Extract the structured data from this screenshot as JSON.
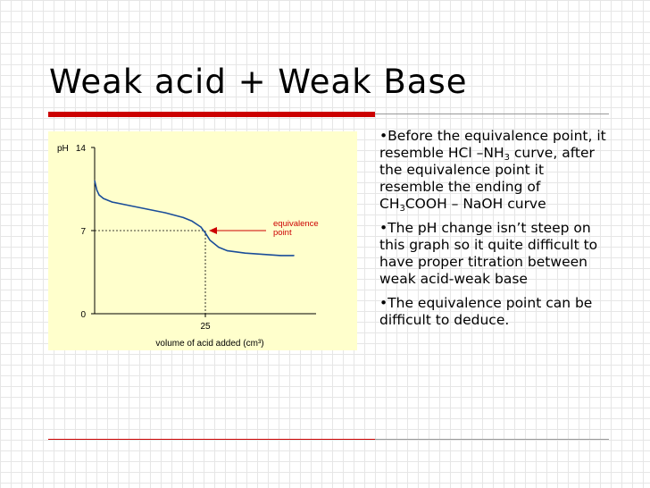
{
  "title": "Weak acid + Weak Base",
  "bullets": [
    {
      "marker": "•",
      "parts": [
        {
          "t": "Before the equivalence point, it resemble HCl –NH"
        },
        {
          "t": "3",
          "sub": true
        },
        {
          "t": " curve, after the equivalence point it resemble the ending of CH"
        },
        {
          "t": "3",
          "sub": true
        },
        {
          "t": "COOH – NaOH curve"
        }
      ]
    },
    {
      "marker": "•",
      "parts": [
        {
          "t": "The pH change isn’t steep on this graph so it quite difficult to have proper titration between weak acid-weak base"
        }
      ]
    },
    {
      "marker": "•",
      "parts": [
        {
          "t": "The equivalence point can be difficult to deduce."
        }
      ]
    }
  ],
  "colors": {
    "accent_red": "#cc0000",
    "curve": "#1a4d99",
    "chart_bg": "#ffffcc"
  },
  "chart_data": {
    "type": "line",
    "title": "",
    "xlabel": "volume of acid added (cm³)",
    "ylabel": "pH",
    "ylim": [
      0,
      14
    ],
    "xlim": [
      0,
      50
    ],
    "y_ticks": [
      0,
      7,
      14
    ],
    "x_ticks": [
      25
    ],
    "grid": false,
    "series": [
      {
        "x": [
          0,
          0.5,
          1,
          2,
          4,
          8,
          12,
          16,
          20,
          22,
          24,
          25,
          26,
          28,
          30,
          34,
          38,
          42,
          45
        ],
        "values": [
          11.2,
          10.4,
          10.0,
          9.7,
          9.4,
          9.1,
          8.8,
          8.5,
          8.1,
          7.8,
          7.3,
          6.8,
          6.2,
          5.6,
          5.3,
          5.1,
          5.0,
          4.9,
          4.9
        ]
      }
    ],
    "equivalence_point": {
      "x": 25,
      "y": 7,
      "label": "equivalence point"
    }
  }
}
